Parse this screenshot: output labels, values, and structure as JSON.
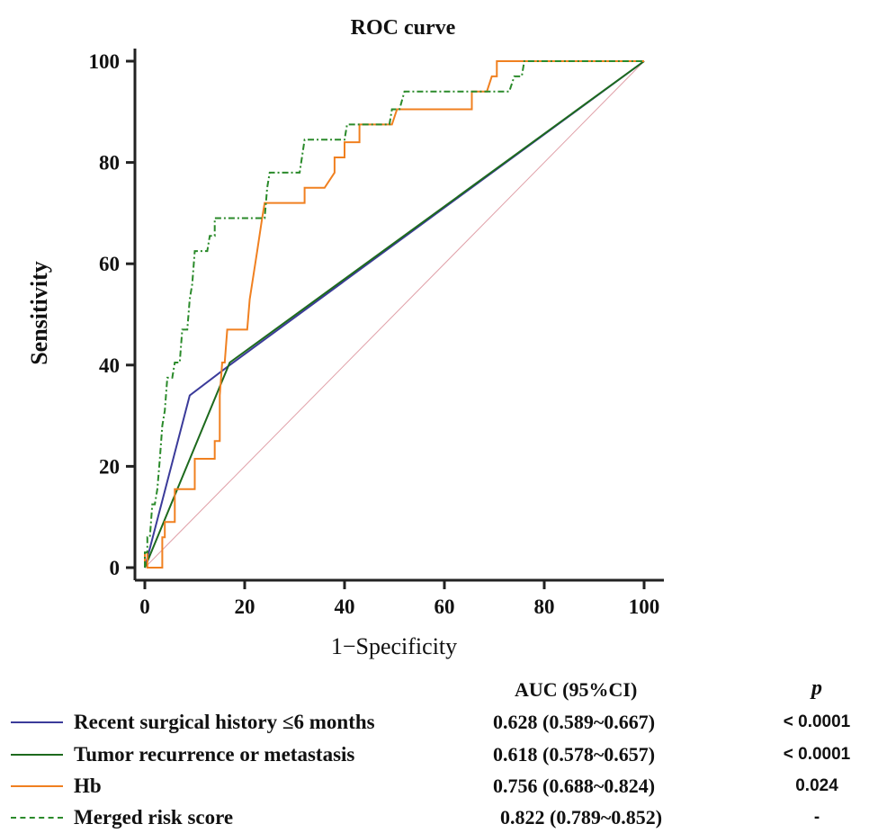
{
  "chart_data": {
    "type": "line",
    "title": "ROC curve",
    "xlabel": "1−Specificity",
    "ylabel": "Sensitivity",
    "xlim": [
      0,
      100
    ],
    "ylim": [
      0,
      100
    ],
    "xticks": [
      0,
      20,
      40,
      60,
      80,
      100
    ],
    "yticks": [
      0,
      20,
      40,
      60,
      80,
      100
    ],
    "grid": false,
    "legend_position": "bottom",
    "reference_line": {
      "x": [
        0,
        100
      ],
      "y": [
        0,
        100
      ],
      "color": "#e0a0a8"
    },
    "series": [
      {
        "name": "Recent surgical history ≤6 months",
        "color": "#3b3b9a",
        "style": "solid",
        "auc": "0.628 (0.589~0.667)",
        "p": "< 0.0001",
        "points": [
          [
            0,
            0
          ],
          [
            9,
            34
          ],
          [
            17,
            40
          ],
          [
            100,
            100
          ]
        ]
      },
      {
        "name": "Tumor recurrence or metastasis",
        "color": "#1d6a1d",
        "style": "solid",
        "auc": "0.618 (0.578~0.657)",
        "p": "< 0.0001",
        "points": [
          [
            0,
            0
          ],
          [
            17,
            40.5
          ],
          [
            100,
            100
          ]
        ]
      },
      {
        "name": "Hb",
        "color": "#f08020",
        "style": "solid",
        "auc": "0.756 (0.688~0.824)",
        "p": "0.024",
        "points": [
          [
            0,
            0
          ],
          [
            0,
            3
          ],
          [
            0.5,
            3
          ],
          [
            0.5,
            0
          ],
          [
            3.5,
            0
          ],
          [
            3.5,
            6
          ],
          [
            4,
            6
          ],
          [
            4,
            9
          ],
          [
            6,
            9
          ],
          [
            6,
            15.5
          ],
          [
            9,
            15.5
          ],
          [
            9,
            15.5
          ],
          [
            10,
            15.5
          ],
          [
            10,
            21.5
          ],
          [
            14,
            21.5
          ],
          [
            14,
            25
          ],
          [
            15,
            25
          ],
          [
            15,
            34
          ],
          [
            15.5,
            40.5
          ],
          [
            16,
            40.5
          ],
          [
            16.5,
            47
          ],
          [
            20.5,
            47
          ],
          [
            21,
            53
          ],
          [
            22.5,
            62.5
          ],
          [
            23.5,
            69
          ],
          [
            24,
            72
          ],
          [
            32,
            72
          ],
          [
            32,
            75
          ],
          [
            36,
            75
          ],
          [
            38,
            78
          ],
          [
            38,
            81
          ],
          [
            40,
            81
          ],
          [
            40,
            84
          ],
          [
            43,
            84
          ],
          [
            43,
            87.5
          ],
          [
            49.5,
            87.5
          ],
          [
            50.5,
            90.5
          ],
          [
            65.5,
            90.5
          ],
          [
            65.5,
            94
          ],
          [
            68.5,
            94
          ],
          [
            69.5,
            97
          ],
          [
            70.5,
            97
          ],
          [
            70.5,
            100
          ],
          [
            100,
            100
          ]
        ]
      },
      {
        "name": "Merged risk score",
        "color": "#2a8a2a",
        "style": "dashdot",
        "auc": "0.822 (0.789~0.852)",
        "p": "-",
        "points": [
          [
            0,
            0
          ],
          [
            0,
            3
          ],
          [
            0.5,
            3
          ],
          [
            0.5,
            6
          ],
          [
            1,
            6
          ],
          [
            1.5,
            12.5
          ],
          [
            2,
            12.5
          ],
          [
            2.5,
            15.5
          ],
          [
            3,
            21.5
          ],
          [
            3.5,
            28
          ],
          [
            4,
            31
          ],
          [
            4.5,
            37.5
          ],
          [
            5.5,
            37.5
          ],
          [
            6,
            40.5
          ],
          [
            7,
            40.5
          ],
          [
            7.5,
            47
          ],
          [
            8.5,
            47
          ],
          [
            9,
            53
          ],
          [
            9.5,
            56
          ],
          [
            10,
            62.5
          ],
          [
            12.5,
            62.5
          ],
          [
            13,
            65.5
          ],
          [
            14,
            65.5
          ],
          [
            14,
            69
          ],
          [
            20,
            69
          ],
          [
            24,
            69
          ],
          [
            24.5,
            75
          ],
          [
            25,
            78
          ],
          [
            27,
            78
          ],
          [
            27.5,
            78
          ],
          [
            31,
            78
          ],
          [
            32,
            84.5
          ],
          [
            38,
            84.5
          ],
          [
            40,
            84.5
          ],
          [
            40.5,
            87.5
          ],
          [
            49,
            87.5
          ],
          [
            49.5,
            90.5
          ],
          [
            51,
            90.5
          ],
          [
            52,
            94
          ],
          [
            62,
            94
          ],
          [
            73,
            94
          ],
          [
            74,
            97
          ],
          [
            75.5,
            97
          ],
          [
            76,
            100
          ],
          [
            100,
            100
          ]
        ]
      }
    ]
  },
  "legend": {
    "auc_header": "AUC (95%CI)",
    "p_header": "p"
  }
}
